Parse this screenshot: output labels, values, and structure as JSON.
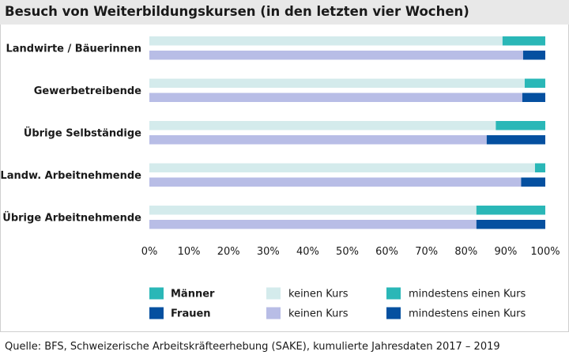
{
  "title": "Besuch von Weiterbildungskursen (in den letzten vier Wochen)",
  "source": "Quelle: BFS, Schweizerische Arbeitskräfteerhebung (SAKE), kumulierte Jahresdaten 2017 – 2019",
  "colors": {
    "men_none": "#d4ebec",
    "men_course": "#2ab7b7",
    "women_none": "#b8bde6",
    "women_course": "#0550a0"
  },
  "chart_data": {
    "type": "bar",
    "orientation": "horizontal",
    "stacked": true,
    "categories": [
      "Landwirte / Bäuerinnen",
      "Gewerbetreibende",
      "Übrige Selbständige",
      "Landw. Arbeitnehmende",
      "Übrige Arbeitnehmende"
    ],
    "series": [
      {
        "group": "Männer",
        "name": "keinen Kurs",
        "values": [
          89.2,
          94.8,
          87.5,
          97.4,
          82.6
        ]
      },
      {
        "group": "Männer",
        "name": "mindestens einen Kurs",
        "values": [
          10.8,
          5.2,
          12.5,
          2.6,
          17.4
        ]
      },
      {
        "group": "Frauen",
        "name": "keinen Kurs",
        "values": [
          94.4,
          94.2,
          85.2,
          93.9,
          82.6
        ]
      },
      {
        "group": "Frauen",
        "name": "mindestens einen Kurs",
        "values": [
          5.6,
          5.8,
          14.8,
          6.1,
          17.4
        ]
      }
    ],
    "xlim": [
      0,
      100
    ],
    "xticks": [
      "0%",
      "10%",
      "20%",
      "30%",
      "40%",
      "50%",
      "60%",
      "70%",
      "80%",
      "90%",
      "100%"
    ],
    "legend": {
      "placement": "bottom",
      "groups": [
        "Männer",
        "Frauen"
      ],
      "items": [
        "keinen Kurs",
        "mindestens einen Kurs"
      ]
    }
  }
}
